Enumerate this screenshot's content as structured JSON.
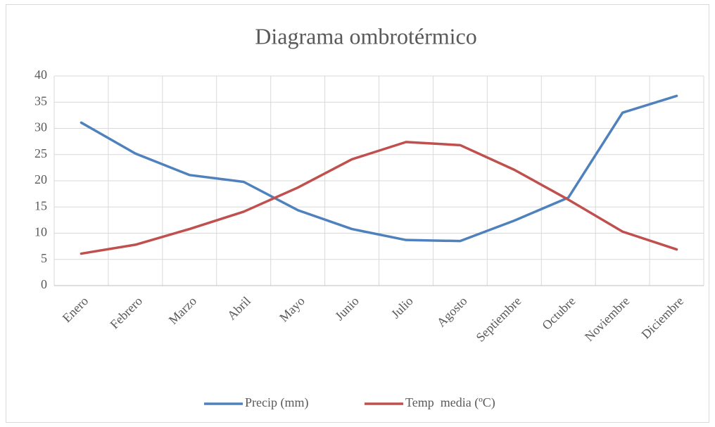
{
  "chart_data": {
    "type": "line",
    "title": "Diagrama ombrotérmico",
    "categories": [
      "Enero",
      "Febrero",
      "Marzo",
      "Abril",
      "Mayo",
      "Junio",
      "Julio",
      "Agosto",
      "Septiembre",
      "Octubre",
      "Noviembre",
      "Diciembre"
    ],
    "series": [
      {
        "name": "Precip (mm)",
        "color": "#4f81bd",
        "values": [
          31.1,
          25.2,
          21.1,
          19.8,
          14.4,
          10.8,
          8.7,
          8.5,
          12.4,
          16.8,
          33.0,
          36.2
        ]
      },
      {
        "name": "Temp  media (ºC)",
        "color": "#c0504d",
        "values": [
          6.1,
          7.8,
          10.8,
          14.1,
          18.7,
          24.1,
          27.4,
          26.8,
          22.1,
          16.4,
          10.3,
          6.9
        ]
      }
    ],
    "ylim": [
      0,
      40
    ],
    "yticks": [
      0,
      5,
      10,
      15,
      20,
      25,
      30,
      35,
      40
    ],
    "grid": true,
    "legend": "bottom"
  }
}
